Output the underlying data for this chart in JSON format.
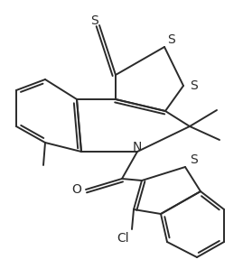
{
  "bg_color": "#ffffff",
  "line_color": "#2a2a2a",
  "line_width": 1.4,
  "figsize": [
    2.69,
    3.08
  ],
  "dpi": 100,
  "S_top_label": "S",
  "S_r1_label": "S",
  "S_r2_label": "S",
  "N_label": "N",
  "O_label": "O",
  "Cl_label": "Cl",
  "S_bt_label": "S"
}
